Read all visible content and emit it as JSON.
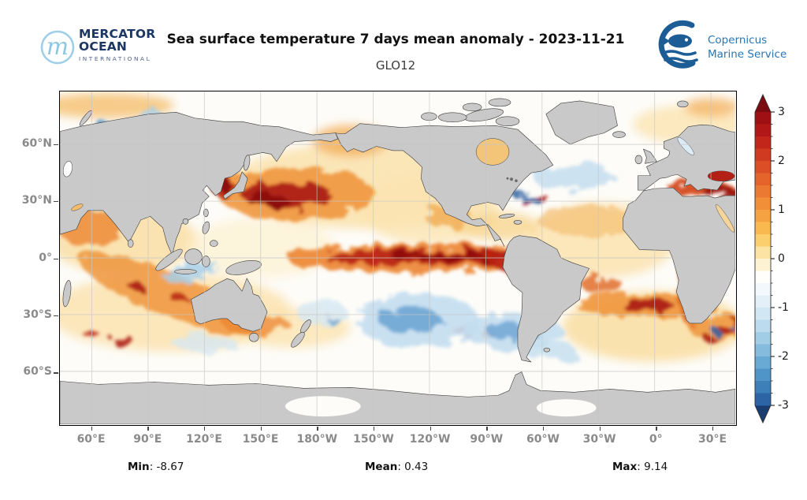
{
  "header": {
    "mercator_logo": {
      "monogram": "m",
      "line1": "MERCATOR",
      "line2": "OCEAN",
      "line3": "INTERNATIONAL"
    },
    "title": "Sea surface temperature 7 days mean anomaly - 2023-11-21",
    "subtitle": "GLO12",
    "copernicus_logo": {
      "line1": "Copernicus",
      "line2": "Marine Service"
    }
  },
  "map": {
    "lat_ticks": [
      "60°N",
      "30°N",
      "0°",
      "30°S",
      "60°S"
    ],
    "lon_ticks": [
      "60°E",
      "90°E",
      "120°E",
      "150°E",
      "180°W",
      "150°W",
      "120°W",
      "90°W",
      "60°W",
      "30°W",
      "0°",
      "30°E"
    ],
    "land_color": "#c9c9c9",
    "grid_color": "#c6c6c6",
    "coast_color": "#3a3a3a"
  },
  "colorbar": {
    "tick_labels": [
      "3",
      "2",
      "1",
      "0",
      "-1",
      "-2",
      "-3"
    ],
    "arrow_top_color": "#7a0b0f",
    "arrow_bottom_color": "#1b3c70",
    "colors_top_to_bottom": [
      "#9e1013",
      "#b11716",
      "#c2261b",
      "#cf3a20",
      "#dc4f26",
      "#e4642c",
      "#ec7931",
      "#f18e38",
      "#f5a342",
      "#f9b94e",
      "#fbcf6e",
      "#fce3a4",
      "#fdf2d2",
      "#fffefb",
      "#f3f8fc",
      "#e4f0f8",
      "#d2e7f4",
      "#bcdbef",
      "#a2cde7",
      "#85bcde",
      "#68aad4",
      "#5095c7",
      "#3c7fb9",
      "#2c64a5"
    ]
  },
  "stats": {
    "min_label": "Min",
    "min_value": "-8.67",
    "mean_label": "Mean",
    "mean_value": "0.43",
    "max_label": "Max",
    "max_value": "9.14"
  },
  "chart_data": {
    "type": "heatmap",
    "title": "Sea surface temperature 7 days mean anomaly - 2023-11-21",
    "subtitle": "GLO12",
    "projection": "equirectangular world map centered on Pacific (left/right edge ~43°E)",
    "x_tick_labels": [
      "60°E",
      "90°E",
      "120°E",
      "150°E",
      "180°W",
      "150°W",
      "120°W",
      "90°W",
      "60°W",
      "30°W",
      "0°",
      "30°E"
    ],
    "y_tick_labels": [
      "60°N",
      "30°N",
      "0°",
      "30°S",
      "60°S"
    ],
    "colorbar_range": [
      -3,
      3
    ],
    "colorbar_ticks": [
      3,
      2,
      1,
      0,
      -1,
      -2,
      -3
    ],
    "colorbar_step": 0.25,
    "stats": {
      "min": -8.67,
      "mean": 0.43,
      "max": 9.14
    },
    "notable_anomalies": [
      {
        "region": "Equatorial central-eastern Pacific (El Nino band to Peru coast)",
        "anomaly": 2.5
      },
      {
        "region": "Northwest Pacific east of Japan / Kuroshio",
        "anomaly": 3
      },
      {
        "region": "Mediterranean Sea and Black Sea",
        "anomaly": 2.5
      },
      {
        "region": "North Atlantic subtropics",
        "anomaly": 1
      },
      {
        "region": "South Atlantic ~30-40S band",
        "anomaly": 2
      },
      {
        "region": "Southern Indian Ocean diagonal band",
        "anomaly": 1.5
      },
      {
        "region": "South central Pacific ~30S",
        "anomaly": -1
      },
      {
        "region": "Southeast Pacific off Chile",
        "anomaly": -1
      },
      {
        "region": "Subpolar North Atlantic south of Greenland",
        "anomaly": -0.5
      },
      {
        "region": "Agulhas region mixed warm/cold eddies",
        "anomaly": 2
      }
    ]
  }
}
